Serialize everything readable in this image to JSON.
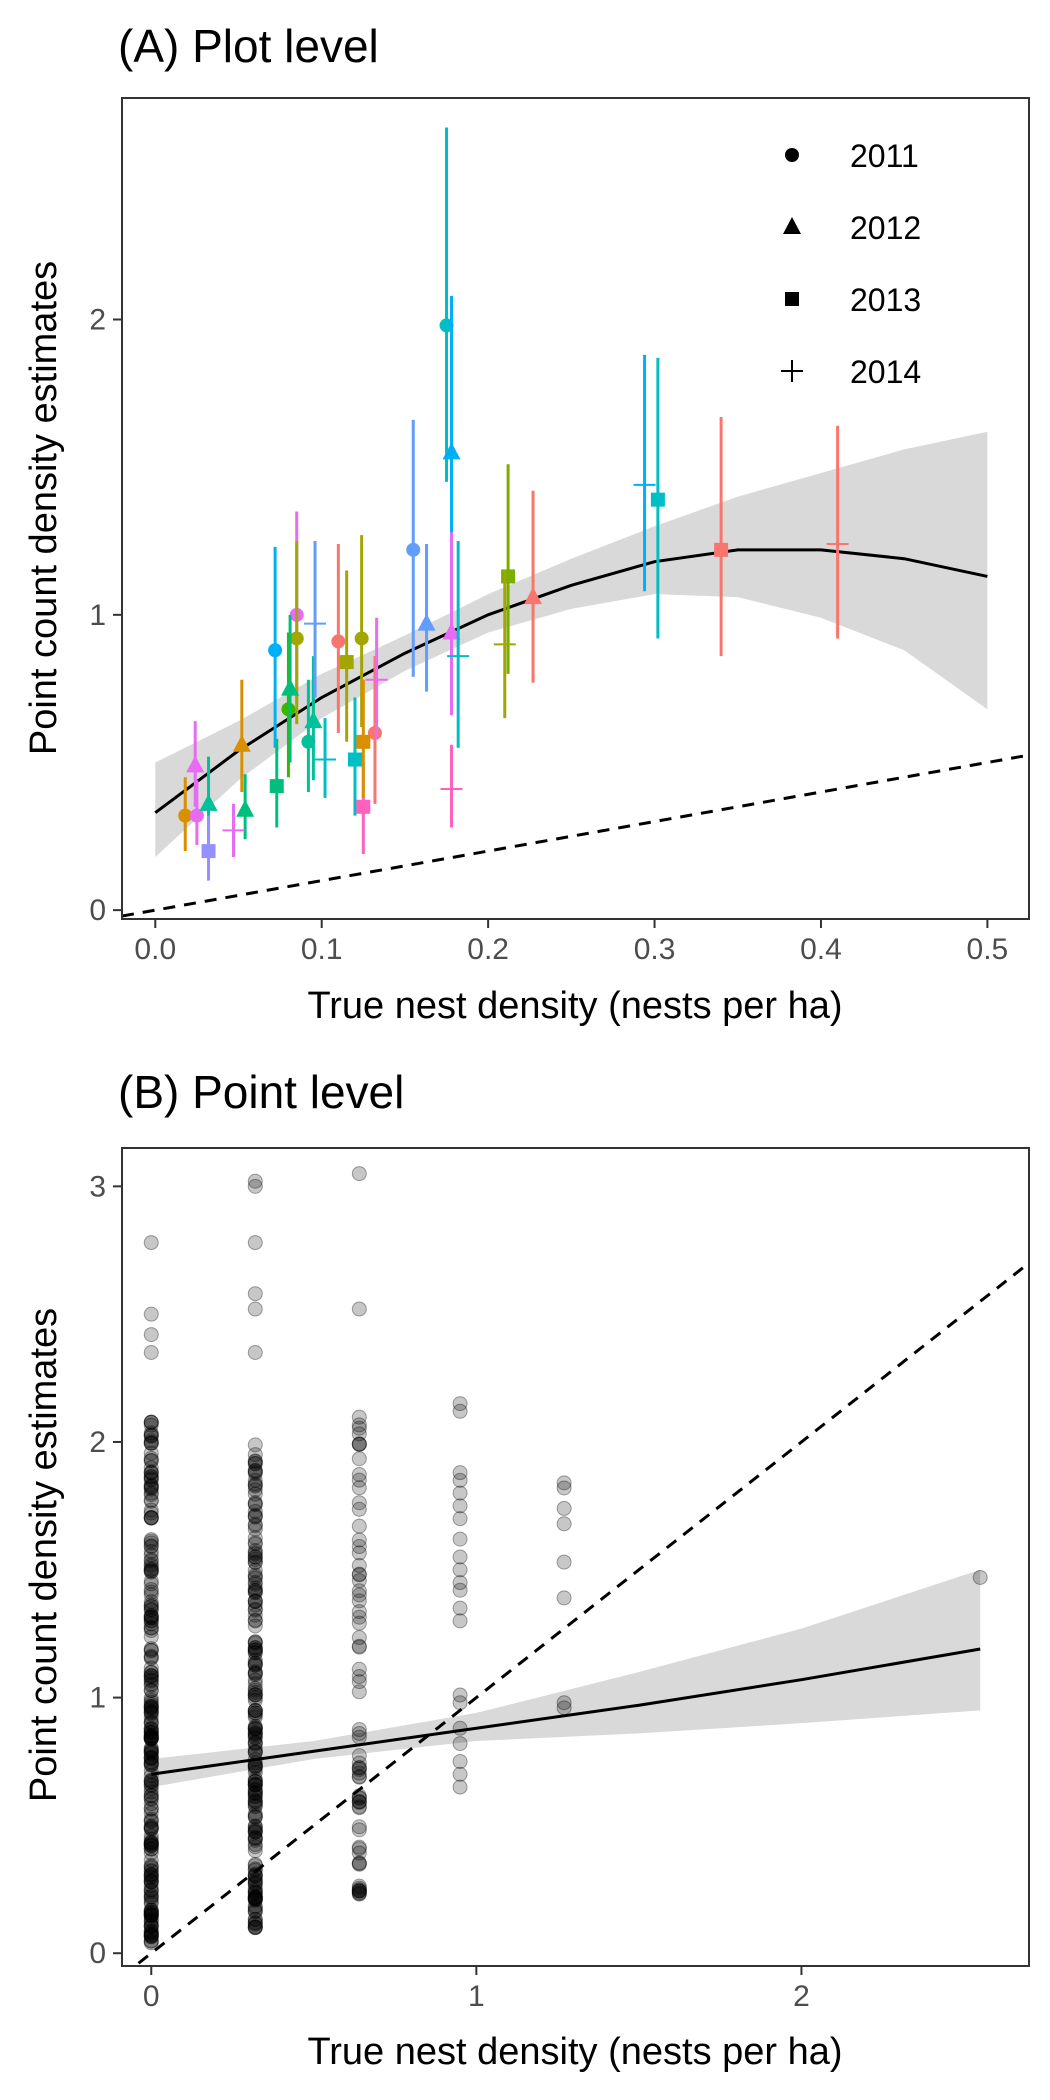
{
  "chart_data": [
    {
      "type": "scatter",
      "title": "(A) Plot level",
      "xlabel": "True nest density (nests per ha)",
      "ylabel": "Point count density estimates",
      "xlim": [
        -0.02,
        0.525
      ],
      "ylim": [
        -0.03,
        2.75
      ],
      "x_ticks": [
        0.0,
        0.1,
        0.2,
        0.3,
        0.4,
        0.5
      ],
      "x_tick_labels": [
        "0.0",
        "0.1",
        "0.2",
        "0.3",
        "0.4",
        "0.5"
      ],
      "y_ticks": [
        0,
        1,
        2
      ],
      "y_tick_labels": [
        "0",
        "1",
        "2"
      ],
      "grid": false,
      "legend": {
        "position": "top-right",
        "entries": [
          {
            "label": "2011",
            "shape": "circle"
          },
          {
            "label": "2012",
            "shape": "triangle"
          },
          {
            "label": "2013",
            "shape": "square"
          },
          {
            "label": "2014",
            "shape": "plus"
          }
        ]
      },
      "fit_line": {
        "style": "solid",
        "x": [
          0.0,
          0.05,
          0.1,
          0.15,
          0.2,
          0.25,
          0.3,
          0.35,
          0.4,
          0.45,
          0.5
        ],
        "y": [
          0.33,
          0.54,
          0.72,
          0.87,
          1.0,
          1.1,
          1.18,
          1.22,
          1.22,
          1.19,
          1.13
        ],
        "ci_lower": [
          0.18,
          0.44,
          0.65,
          0.81,
          0.94,
          1.02,
          1.07,
          1.06,
          0.99,
          0.88,
          0.68
        ],
        "ci_upper": [
          0.5,
          0.64,
          0.8,
          0.93,
          1.07,
          1.19,
          1.3,
          1.4,
          1.48,
          1.56,
          1.62
        ],
        "ci_color": "#d9d9d9"
      },
      "reference_line": {
        "style": "dashed",
        "slope": 1.0,
        "intercept": 0.0
      },
      "points": [
        {
          "year": "2011",
          "shape": "circle",
          "color": "#00bfc4",
          "x": 0.175,
          "y": 1.98,
          "lo": 1.45,
          "hi": 2.65
        },
        {
          "year": "2011",
          "shape": "circle",
          "color": "#619cff",
          "x": 0.155,
          "y": 1.22,
          "lo": 0.79,
          "hi": 1.66
        },
        {
          "year": "2011",
          "shape": "circle",
          "color": "#00b0f6",
          "x": 0.072,
          "y": 0.88,
          "lo": 0.55,
          "hi": 1.23
        },
        {
          "year": "2011",
          "shape": "circle",
          "color": "#e76bf3",
          "x": 0.085,
          "y": 1.0,
          "lo": 0.7,
          "hi": 1.35
        },
        {
          "year": "2011",
          "shape": "circle",
          "color": "#f8766d",
          "x": 0.11,
          "y": 0.91,
          "lo": 0.6,
          "hi": 1.24
        },
        {
          "year": "2011",
          "shape": "circle",
          "color": "#a3a500",
          "x": 0.085,
          "y": 0.92,
          "lo": 0.63,
          "hi": 1.25
        },
        {
          "year": "2011",
          "shape": "circle",
          "color": "#d89000",
          "x": 0.018,
          "y": 0.32,
          "lo": 0.2,
          "hi": 0.45
        },
        {
          "year": "2011",
          "shape": "circle",
          "color": "#e76bf3",
          "x": 0.025,
          "y": 0.32,
          "lo": 0.22,
          "hi": 0.44
        },
        {
          "year": "2011",
          "shape": "circle",
          "color": "#f8766d",
          "x": 0.132,
          "y": 0.6,
          "lo": 0.36,
          "hi": 0.86
        },
        {
          "year": "2011",
          "shape": "circle",
          "color": "#39b600",
          "x": 0.08,
          "y": 0.68,
          "lo": 0.45,
          "hi": 0.94
        },
        {
          "year": "2011",
          "shape": "circle",
          "color": "#00c19a",
          "x": 0.092,
          "y": 0.57,
          "lo": 0.4,
          "hi": 0.78
        },
        {
          "year": "2011",
          "shape": "circle",
          "color": "#a3a500",
          "x": 0.124,
          "y": 0.92,
          "lo": 0.62,
          "hi": 1.27
        },
        {
          "year": "2012",
          "shape": "triangle",
          "color": "#00b0f6",
          "x": 0.178,
          "y": 1.55,
          "lo": 1.03,
          "hi": 2.08
        },
        {
          "year": "2012",
          "shape": "triangle",
          "color": "#f8766d",
          "x": 0.227,
          "y": 1.06,
          "lo": 0.77,
          "hi": 1.42
        },
        {
          "year": "2012",
          "shape": "triangle",
          "color": "#619cff",
          "x": 0.163,
          "y": 0.97,
          "lo": 0.74,
          "hi": 1.24
        },
        {
          "year": "2012",
          "shape": "triangle",
          "color": "#e76bf3",
          "x": 0.178,
          "y": 0.94,
          "lo": 0.66,
          "hi": 1.28
        },
        {
          "year": "2012",
          "shape": "triangle",
          "color": "#d89000",
          "x": 0.052,
          "y": 0.56,
          "lo": 0.4,
          "hi": 0.78
        },
        {
          "year": "2012",
          "shape": "triangle",
          "color": "#e76bf3",
          "x": 0.024,
          "y": 0.49,
          "lo": 0.35,
          "hi": 0.64
        },
        {
          "year": "2012",
          "shape": "triangle",
          "color": "#00c19a",
          "x": 0.032,
          "y": 0.36,
          "lo": 0.2,
          "hi": 0.52
        },
        {
          "year": "2012",
          "shape": "triangle",
          "color": "#00bf7d",
          "x": 0.054,
          "y": 0.34,
          "lo": 0.24,
          "hi": 0.46
        },
        {
          "year": "2012",
          "shape": "triangle",
          "color": "#00c19a",
          "x": 0.095,
          "y": 0.64,
          "lo": 0.44,
          "hi": 0.86
        },
        {
          "year": "2012",
          "shape": "triangle",
          "color": "#00bf7d",
          "x": 0.081,
          "y": 0.75,
          "lo": 0.5,
          "hi": 1.0
        },
        {
          "year": "2013",
          "shape": "square",
          "color": "#00bfc4",
          "x": 0.302,
          "y": 1.39,
          "lo": 0.92,
          "hi": 1.87
        },
        {
          "year": "2013",
          "shape": "square",
          "color": "#f8766d",
          "x": 0.34,
          "y": 1.22,
          "lo": 0.86,
          "hi": 1.67
        },
        {
          "year": "2013",
          "shape": "square",
          "color": "#7cae00",
          "x": 0.212,
          "y": 1.13,
          "lo": 0.8,
          "hi": 1.51
        },
        {
          "year": "2013",
          "shape": "square",
          "color": "#00bf7d",
          "x": 0.073,
          "y": 0.42,
          "lo": 0.28,
          "hi": 0.58
        },
        {
          "year": "2013",
          "shape": "square",
          "color": "#00bfc4",
          "x": 0.12,
          "y": 0.51,
          "lo": 0.32,
          "hi": 0.72
        },
        {
          "year": "2013",
          "shape": "square",
          "color": "#ff62bc",
          "x": 0.125,
          "y": 0.35,
          "lo": 0.19,
          "hi": 0.5
        },
        {
          "year": "2013",
          "shape": "square",
          "color": "#9590ff",
          "x": 0.032,
          "y": 0.2,
          "lo": 0.1,
          "hi": 0.32
        },
        {
          "year": "2013",
          "shape": "square",
          "color": "#d89000",
          "x": 0.125,
          "y": 0.57,
          "lo": 0.38,
          "hi": 0.78
        },
        {
          "year": "2013",
          "shape": "square",
          "color": "#a3a500",
          "x": 0.115,
          "y": 0.84,
          "lo": 0.57,
          "hi": 1.15
        },
        {
          "year": "2014",
          "shape": "plus",
          "color": "#00b0f6",
          "x": 0.294,
          "y": 1.44,
          "lo": 1.08,
          "hi": 1.88
        },
        {
          "year": "2014",
          "shape": "plus",
          "color": "#f8766d",
          "x": 0.41,
          "y": 1.24,
          "lo": 0.92,
          "hi": 1.64
        },
        {
          "year": "2014",
          "shape": "plus",
          "color": "#a3a500",
          "x": 0.21,
          "y": 0.9,
          "lo": 0.65,
          "hi": 1.15
        },
        {
          "year": "2014",
          "shape": "plus",
          "color": "#00bfc4",
          "x": 0.182,
          "y": 0.86,
          "lo": 0.55,
          "hi": 1.25
        },
        {
          "year": "2014",
          "shape": "plus",
          "color": "#ff62bc",
          "x": 0.178,
          "y": 0.41,
          "lo": 0.28,
          "hi": 0.56
        },
        {
          "year": "2014",
          "shape": "plus",
          "color": "#e76bf3",
          "x": 0.047,
          "y": 0.27,
          "lo": 0.18,
          "hi": 0.36
        },
        {
          "year": "2014",
          "shape": "plus",
          "color": "#00bfc4",
          "x": 0.102,
          "y": 0.51,
          "lo": 0.38,
          "hi": 0.65
        },
        {
          "year": "2014",
          "shape": "plus",
          "color": "#619cff",
          "x": 0.096,
          "y": 0.97,
          "lo": 0.72,
          "hi": 1.25
        },
        {
          "year": "2014",
          "shape": "plus",
          "color": "#e76bf3",
          "x": 0.133,
          "y": 0.78,
          "lo": 0.58,
          "hi": 0.99
        }
      ]
    },
    {
      "type": "scatter",
      "title": "(B) Point level",
      "xlabel": "True nest density (nests per ha)",
      "ylabel": "Point count density estimates",
      "xlim": [
        -0.09,
        2.7
      ],
      "ylim": [
        -0.05,
        3.15
      ],
      "x_ticks": [
        0,
        1,
        2
      ],
      "x_tick_labels": [
        "0",
        "1",
        "2"
      ],
      "y_ticks": [
        0,
        1,
        2,
        3
      ],
      "y_tick_labels": [
        "0",
        "1",
        "2",
        "3"
      ],
      "grid": false,
      "point_color": "#000000",
      "point_opacity": 0.22,
      "fit_line": {
        "style": "solid",
        "x": [
          0.0,
          0.5,
          1.0,
          1.5,
          2.0,
          2.55
        ],
        "y": [
          0.7,
          0.79,
          0.88,
          0.97,
          1.07,
          1.19
        ],
        "ci_lower": [
          0.65,
          0.76,
          0.83,
          0.86,
          0.9,
          0.95
        ],
        "ci_upper": [
          0.76,
          0.83,
          0.94,
          1.1,
          1.27,
          1.5
        ],
        "ci_color": "#d9d9d9"
      },
      "reference_line": {
        "style": "dashed",
        "slope": 1.0,
        "intercept": 0.0
      },
      "columns": [
        {
          "x": 0.0,
          "n": 240,
          "min": 0.04,
          "max": 2.55,
          "dense_max": 2.1,
          "extra": [
            2.78,
            2.5,
            2.42,
            2.35
          ]
        },
        {
          "x": 0.32,
          "n": 200,
          "min": 0.1,
          "max": 2.58,
          "dense_max": 2.0,
          "extra": [
            3.02,
            3.0,
            2.78,
            2.58,
            2.52,
            2.35
          ]
        },
        {
          "x": 0.64,
          "n": 70,
          "min": 0.23,
          "max": 2.3,
          "dense_max": 2.1,
          "extra": [
            3.05,
            2.52
          ]
        },
        {
          "x": 0.95,
          "values": [
            2.15,
            2.12,
            1.88,
            1.85,
            1.8,
            1.75,
            1.7,
            1.62,
            1.55,
            1.5,
            1.45,
            1.42,
            1.35,
            1.3,
            1.01,
            0.98,
            0.88,
            0.82,
            0.75,
            0.7,
            0.65
          ]
        },
        {
          "x": 1.27,
          "values": [
            1.84,
            1.82,
            1.74,
            1.68,
            1.53,
            1.39,
            0.98,
            0.96
          ]
        },
        {
          "x": 2.55,
          "values": [
            1.47
          ]
        }
      ]
    }
  ]
}
